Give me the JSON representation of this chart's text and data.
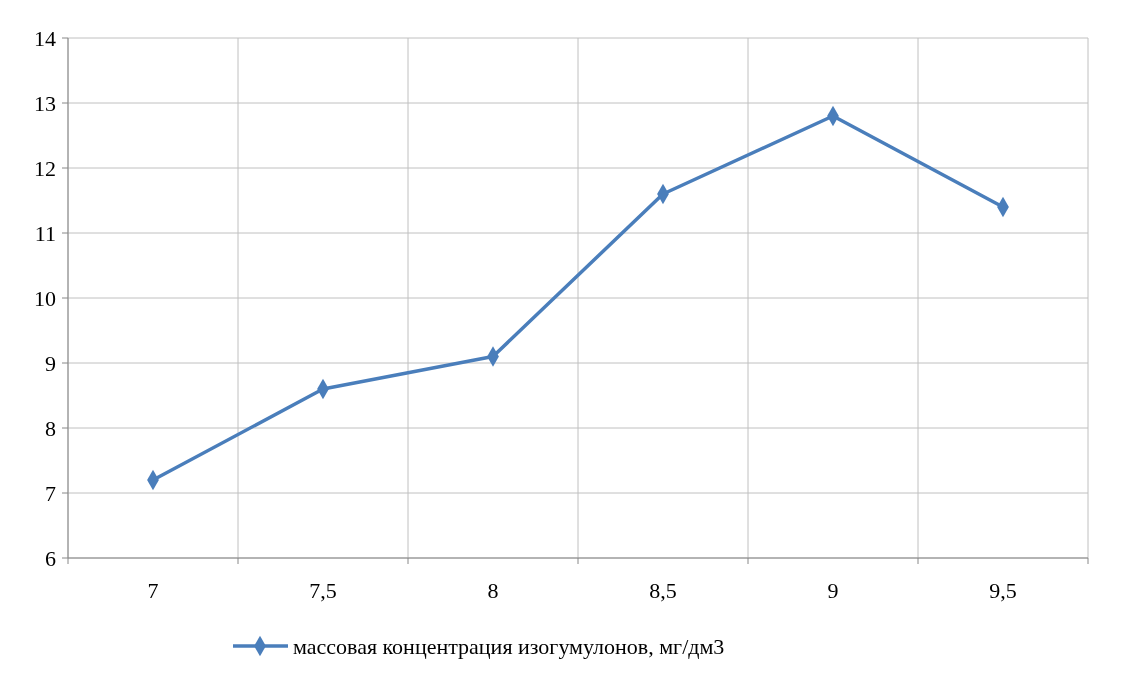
{
  "chart_data": {
    "type": "line",
    "categories": [
      "7",
      "7,5",
      "8",
      "8,5",
      "9",
      "9,5"
    ],
    "series": [
      {
        "name": "массовая концентрация изогумулонов, мг/дм3",
        "color": "#4a7ebb",
        "values": [
          7.2,
          8.6,
          9.1,
          11.6,
          12.8,
          11.4
        ]
      }
    ],
    "ylim": [
      6,
      14
    ],
    "yticks": [
      6,
      7,
      8,
      9,
      10,
      11,
      12,
      13,
      14
    ],
    "grid": true,
    "legend": "bottom",
    "marker": "diamond",
    "line_style": "solid"
  }
}
